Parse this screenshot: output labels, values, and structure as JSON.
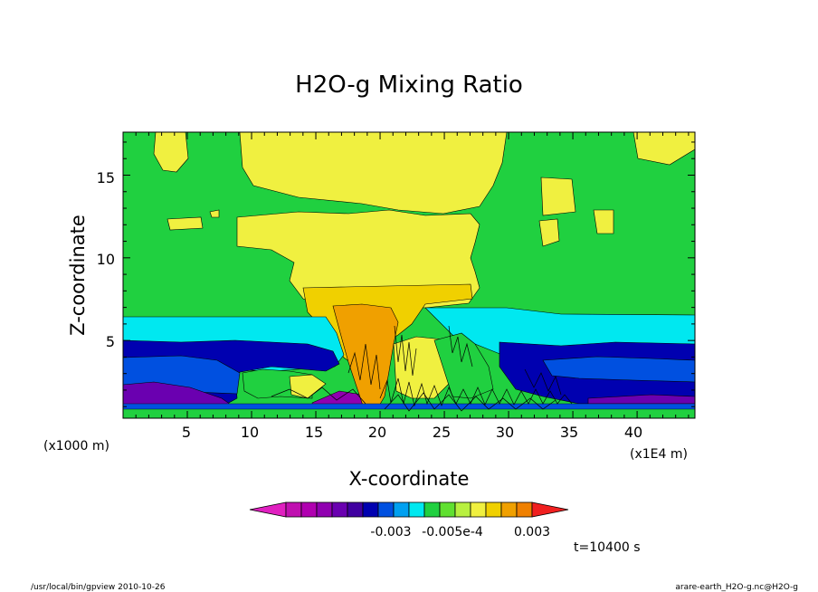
{
  "chart_data": {
    "type": "heatmap",
    "title": "H2O-g Mixing Ratio",
    "xlabel": "X-coordinate",
    "ylabel": "Z-coordinate",
    "x_unit_left": "(x1000 m)",
    "x_unit_right": "(x1E4 m)",
    "xlim": [
      0,
      44.5
    ],
    "ylim": [
      0.3,
      17.6
    ],
    "x_ticks": [
      "5",
      "10",
      "15",
      "20",
      "25",
      "30",
      "35",
      "40"
    ],
    "y_ticks": [
      "5",
      "10",
      "15"
    ],
    "colorbar": {
      "colors": [
        "#e020c0",
        "#c010b0",
        "#b000b0",
        "#9000b0",
        "#6a00b0",
        "#4000a0",
        "#0000b0",
        "#0050e0",
        "#00a0f0",
        "#00e8f0",
        "#20d040",
        "#60e030",
        "#b8f040",
        "#f0f040",
        "#f0d000",
        "#f0a000",
        "#f08000",
        "#f02020"
      ],
      "labels": [
        "-0.003",
        "-0.005e-4",
        "0.003"
      ]
    },
    "time_label": "t=10400 s",
    "footer_left": "/usr/local/bin/gpview  2010-10-26",
    "footer_right": "arare-earth_H2O-g.nc@H2O-g"
  }
}
